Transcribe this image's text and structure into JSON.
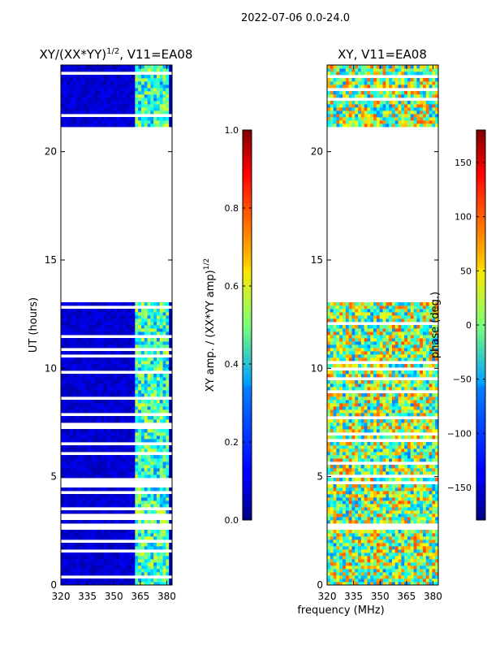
{
  "suptitle": "2022-07-06 0.0-24.0",
  "chart_data": [
    {
      "type": "heatmap",
      "title_prefix": "XY/(XX*YY)",
      "title_sup": "1/2",
      "title_suffix": ", V11=EA08",
      "xlabel": "frequency (MHz)",
      "ylabel": "UT (hours)",
      "xlim": [
        320,
        383
      ],
      "ylim": [
        0,
        24
      ],
      "xticks": [
        320,
        335,
        350,
        365,
        380
      ],
      "yticks": [
        0,
        5,
        10,
        15,
        20
      ],
      "colorbar": {
        "label_prefix": "XY amp. / (XX*YY amp)",
        "label_sup": "1/2",
        "range": [
          0.0,
          1.0
        ],
        "ticks": [
          "0.0",
          "0.2",
          "0.4",
          "0.6",
          "0.8",
          "1.0"
        ],
        "colormap": "jet"
      },
      "data_gaps_hours": [
        [
          2.5,
          2.9
        ],
        [
          20.0,
          21.1
        ],
        [
          13.0,
          19.99
        ]
      ],
      "note": "Mostly low amplitude (~0.05) except 362-380 MHz band (~0.4-0.6)"
    },
    {
      "type": "heatmap",
      "title": "XY, V11=EA08",
      "xlabel": "frequency (MHz)",
      "xlim": [
        320,
        383
      ],
      "ylim": [
        0,
        24
      ],
      "xticks": [
        320,
        335,
        350,
        365,
        380
      ],
      "yticks": [
        0,
        5,
        10,
        15,
        20
      ],
      "colorbar": {
        "label": "phase (deg.)",
        "range": [
          -180,
          180
        ],
        "ticks": [
          "150",
          "100",
          "50",
          "0",
          "−50",
          "−100",
          "−150"
        ],
        "colormap": "jet"
      },
      "data_gaps_hours": [
        [
          2.5,
          2.9
        ],
        [
          20.0,
          21.1
        ],
        [
          13.0,
          19.99
        ]
      ],
      "note": "Phase noise-like structure across band"
    }
  ]
}
